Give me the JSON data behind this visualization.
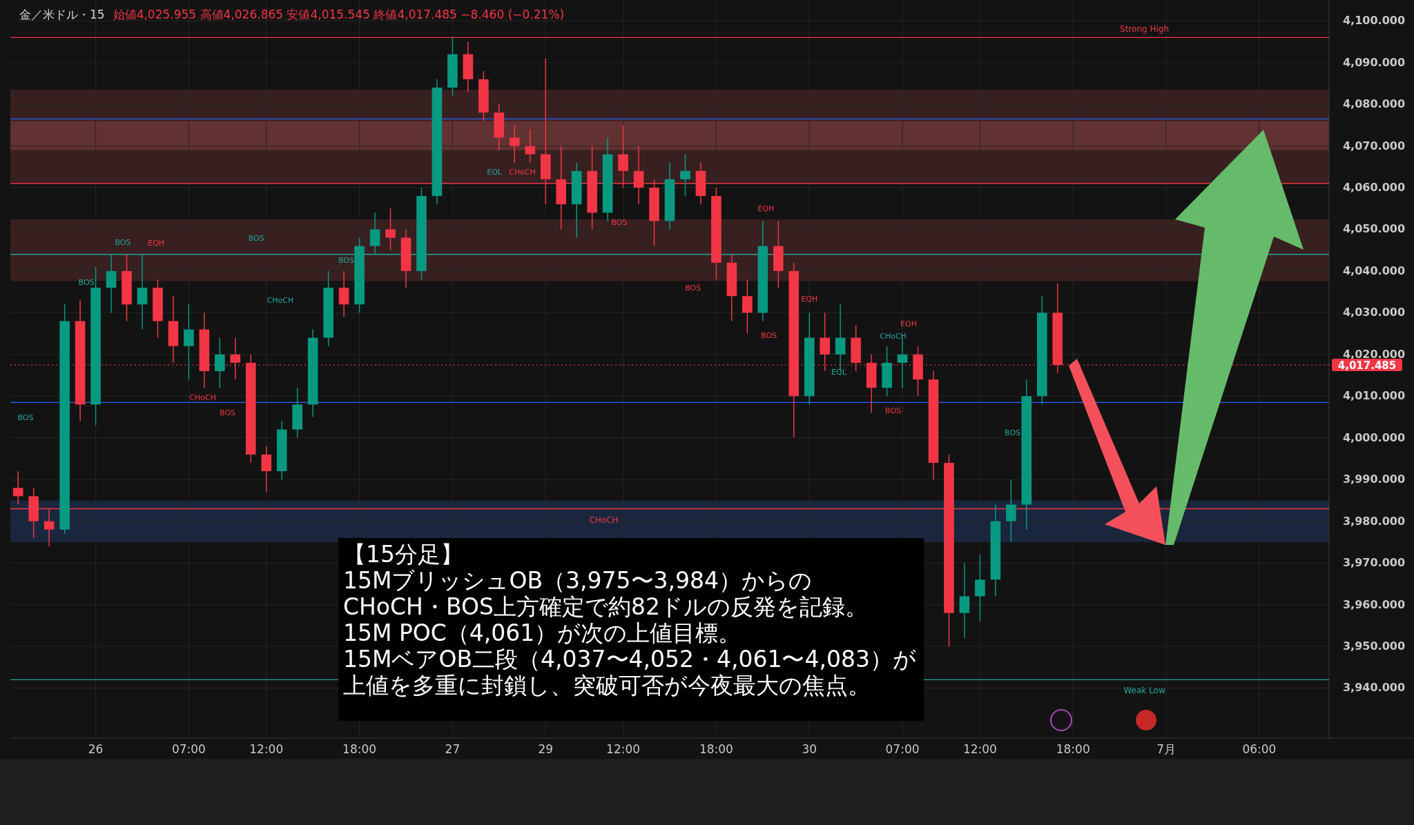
{
  "chart_data": {
    "type": "candlestick",
    "title": "金／米ドル・15",
    "subtitle": "始値4,025.955  高値4,026.865  安値4,015.545  終値4,017.485  −8.460 (−0.21%)",
    "categories": [
      null,
      null,
      null,
      null,
      null,
      "26",
      null,
      null,
      null,
      null,
      null,
      "07:00",
      null,
      null,
      null,
      null,
      "12:00",
      null,
      null,
      null,
      null,
      null,
      "18:00",
      null,
      null,
      null,
      null,
      null,
      "27",
      null,
      null,
      null,
      null,
      null,
      "29",
      null,
      null,
      null,
      null,
      "12:00",
      null,
      null,
      null,
      null,
      null,
      "18:00",
      null,
      null,
      null,
      null,
      null,
      "30",
      null,
      null,
      null,
      null,
      null,
      "07:00",
      null,
      null,
      null,
      null,
      "12:00",
      null,
      null,
      null,
      null,
      null,
      "18:00",
      null,
      null,
      null,
      null,
      null,
      "7月",
      null,
      null,
      null,
      null,
      null,
      "06:00",
      null,
      null,
      null,
      null
    ],
    "ohlc": [
      [
        3988,
        3992,
        3984,
        3986
      ],
      [
        3986,
        3988,
        3976,
        3980
      ],
      [
        3980,
        3983,
        3974,
        3978
      ],
      [
        3978,
        4032,
        3977,
        4028
      ],
      [
        4028,
        4033,
        4004,
        4008
      ],
      [
        4008,
        4041,
        4003,
        4036
      ],
      [
        4036,
        4044,
        4030,
        4040
      ],
      [
        4040,
        4044,
        4028,
        4032
      ],
      [
        4032,
        4044,
        4026,
        4036
      ],
      [
        4036,
        4038,
        4024,
        4028
      ],
      [
        4028,
        4034,
        4018,
        4022
      ],
      [
        4022,
        4032,
        4014,
        4026
      ],
      [
        4026,
        4030,
        4012,
        4016
      ],
      [
        4016,
        4024,
        4012,
        4020
      ],
      [
        4020,
        4024,
        4014,
        4018
      ],
      [
        4018,
        4020,
        3994,
        3996
      ],
      [
        3996,
        3998,
        3987,
        3992
      ],
      [
        3992,
        4004,
        3990,
        4002
      ],
      [
        4002,
        4012,
        4000,
        4008
      ],
      [
        4008,
        4026,
        4005,
        4024
      ],
      [
        4024,
        4040,
        4022,
        4036
      ],
      [
        4036,
        4040,
        4029,
        4032
      ],
      [
        4032,
        4048,
        4030,
        4046
      ],
      [
        4046,
        4054,
        4044,
        4050
      ],
      [
        4050,
        4055,
        4045,
        4048
      ],
      [
        4048,
        4050,
        4036,
        4040
      ],
      [
        4040,
        4060,
        4038,
        4058
      ],
      [
        4058,
        4086,
        4056,
        4084
      ],
      [
        4084,
        4096,
        4082,
        4092
      ],
      [
        4092,
        4095,
        4083,
        4086
      ],
      [
        4086,
        4088,
        4076,
        4078
      ],
      [
        4078,
        4080,
        4069,
        4072
      ],
      [
        4072,
        4075,
        4066,
        4070
      ],
      [
        4070,
        4074,
        4066,
        4068
      ],
      [
        4068,
        4091,
        4056,
        4062
      ],
      [
        4062,
        4070,
        4050,
        4056
      ],
      [
        4056,
        4066,
        4048,
        4064
      ],
      [
        4064,
        4070,
        4050,
        4054
      ],
      [
        4054,
        4072,
        4052,
        4068
      ],
      [
        4068,
        4075,
        4060,
        4064
      ],
      [
        4064,
        4070,
        4056,
        4060
      ],
      [
        4060,
        4062,
        4046,
        4052
      ],
      [
        4052,
        4066,
        4050,
        4062
      ],
      [
        4062,
        4068,
        4058,
        4064
      ],
      [
        4064,
        4066,
        4056,
        4058
      ],
      [
        4058,
        4060,
        4038,
        4042
      ],
      [
        4042,
        4044,
        4028,
        4034
      ],
      [
        4034,
        4038,
        4025,
        4030
      ],
      [
        4030,
        4052,
        4028,
        4046
      ],
      [
        4046,
        4052,
        4036,
        4040
      ],
      [
        4040,
        4042,
        4000,
        4010
      ],
      [
        4010,
        4030,
        4008,
        4024
      ],
      [
        4024,
        4030,
        4016,
        4020
      ],
      [
        4020,
        4032,
        4016,
        4024
      ],
      [
        4024,
        4027,
        4016,
        4018
      ],
      [
        4018,
        4020,
        4006,
        4012
      ],
      [
        4012,
        4022,
        4010,
        4018
      ],
      [
        4018,
        4024,
        4012,
        4020
      ],
      [
        4020,
        4022,
        4010,
        4014
      ],
      [
        4014,
        4016,
        3990,
        3994
      ],
      [
        3994,
        3996,
        3950,
        3958
      ],
      [
        3958,
        3970,
        3952,
        3962
      ],
      [
        3962,
        3972,
        3956,
        3966
      ],
      [
        3966,
        3984,
        3962,
        3980
      ],
      [
        3980,
        3990,
        3975,
        3984
      ],
      [
        3984,
        4014,
        3978,
        4010
      ],
      [
        4010,
        4034,
        4008,
        4030
      ],
      [
        4030,
        4037,
        4015.545,
        4017.485
      ],
      null,
      null,
      null,
      null,
      null,
      null,
      null,
      null,
      null,
      null,
      null,
      null,
      null,
      null,
      null,
      null,
      null
    ],
    "ylim": [
      3928,
      4105
    ],
    "yticks": [
      {
        "value": 3940,
        "label": "3,940.000"
      },
      {
        "value": 3950,
        "label": "3,950.000"
      },
      {
        "value": 3960,
        "label": "3,960.000"
      },
      {
        "value": 3970,
        "label": "3,970.000"
      },
      {
        "value": 3980,
        "label": "3,980.000"
      },
      {
        "value": 3990,
        "label": "3,990.000"
      },
      {
        "value": 4000,
        "label": "4,000.000"
      },
      {
        "value": 4010,
        "label": "4,010.000"
      },
      {
        "value": 4020,
        "label": "4,020.000"
      },
      {
        "value": 4030,
        "label": "4,030.000"
      },
      {
        "value": 4040,
        "label": "4,040.000"
      },
      {
        "value": 4050,
        "label": "4,050.000"
      },
      {
        "value": 4060,
        "label": "4,060.000"
      },
      {
        "value": 4070,
        "label": "4,070.000"
      },
      {
        "value": 4080,
        "label": "4,080.000"
      },
      {
        "value": 4090,
        "label": "4,090.000"
      },
      {
        "value": 4100,
        "label": "4,100.000"
      }
    ],
    "grid": true,
    "bands": [
      {
        "axis": "y",
        "from": 4061,
        "to": 4083.5,
        "color": "#3f2323"
      },
      {
        "axis": "y",
        "from": 4069,
        "to": 4076,
        "color": "#6a3535"
      },
      {
        "axis": "y",
        "from": 4037.6,
        "to": 4052.4,
        "color": "#3f2323"
      },
      {
        "axis": "y",
        "from": 3975,
        "to": 3985,
        "color": "#1b2a45"
      }
    ],
    "ref_lines": [
      {
        "axis": "y",
        "value": 4096,
        "label": "Strong High",
        "color": "#f23645"
      },
      {
        "axis": "y",
        "value": 4076.5,
        "color": "#2962ff"
      },
      {
        "axis": "y",
        "value": 4061,
        "color": "#f23645"
      },
      {
        "axis": "y",
        "value": 4044,
        "color": "#26a69a"
      },
      {
        "axis": "y",
        "value": 4008.5,
        "color": "#2962ff"
      },
      {
        "axis": "y",
        "value": 3983,
        "label": "CHoCH",
        "color": "#f23645"
      },
      {
        "axis": "y",
        "value": 3942,
        "label": "Weak Low",
        "color": "#26a69a"
      },
      {
        "axis": "y",
        "value": 4017.485,
        "label": "4,017.485",
        "color": "#f23645",
        "line_style": "dotted"
      }
    ],
    "annotations": [
      "【15分足】",
      "15MブリッシュOB（3,975〜3,984）からの",
      "CHoCH・BOS上方確定で約82ドルの反発を記録。",
      "15M POC（4,061）が次の上値目標。",
      "15MベアOB二段（4,037〜4,052・4,061〜4,083）が",
      "上値を多重に封鎖し、突破可否が今夜最大の焦点。",
      "BOS",
      "BOS",
      "BOS",
      "EQH",
      "BOS",
      "BOS",
      "CHoCH",
      "CHoCH",
      "BOS",
      "EQL",
      "CHoCH",
      "BOS",
      "BOS",
      "EQH",
      "EQH",
      "BOS",
      "EQL",
      "CHoCH",
      "EQH",
      "BOS",
      "BOS"
    ]
  }
}
